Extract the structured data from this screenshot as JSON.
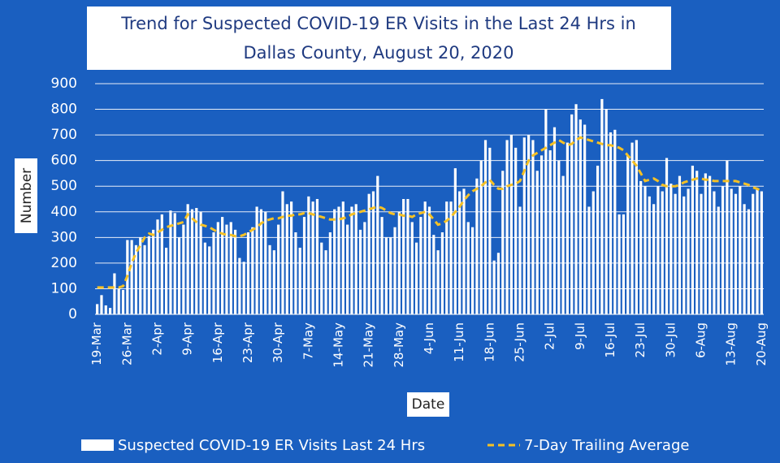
{
  "chart_data": {
    "type": "bar-line",
    "title": [
      "Trend for Suspected COVID-19 ER Visits in the Last 24 Hrs in",
      "Dallas County, August 20, 2020"
    ],
    "x_label": "Date",
    "y_label": "Number",
    "categories": [
      "19-Mar",
      null,
      null,
      null,
      null,
      null,
      null,
      "26-Mar",
      null,
      null,
      null,
      null,
      null,
      null,
      "2-Apr",
      null,
      null,
      null,
      null,
      null,
      null,
      "9-Apr",
      null,
      null,
      null,
      null,
      null,
      null,
      "16-Apr",
      null,
      null,
      null,
      null,
      null,
      null,
      "23-Apr",
      null,
      null,
      null,
      null,
      null,
      null,
      "30-Apr",
      null,
      null,
      null,
      null,
      null,
      null,
      "7-May",
      null,
      null,
      null,
      null,
      null,
      null,
      "14-May",
      null,
      null,
      null,
      null,
      null,
      null,
      "21-May",
      null,
      null,
      null,
      null,
      null,
      null,
      "28-May",
      null,
      null,
      null,
      null,
      null,
      null,
      "4-Jun",
      null,
      null,
      null,
      null,
      null,
      null,
      "11-Jun",
      null,
      null,
      null,
      null,
      null,
      null,
      "18-Jun",
      null,
      null,
      null,
      null,
      null,
      null,
      "25-Jun",
      null,
      null,
      null,
      null,
      null,
      null,
      "2-Jul",
      null,
      null,
      null,
      null,
      null,
      null,
      "9-Jul",
      null,
      null,
      null,
      null,
      null,
      null,
      "16-Jul",
      null,
      null,
      null,
      null,
      null,
      null,
      "23-Jul",
      null,
      null,
      null,
      null,
      null,
      null,
      "30-Jul",
      null,
      null,
      null,
      null,
      null,
      null,
      "6-Aug",
      null,
      null,
      null,
      null,
      null,
      null,
      "13-Aug",
      null,
      null,
      null,
      null,
      null,
      null,
      "20-Aug"
    ],
    "series": [
      {
        "name": "Suspected COVID-19 ER Visits Last 24 Hrs",
        "type": "bar",
        "color": "#ffffff",
        "values": [
          40,
          75,
          35,
          25,
          160,
          100,
          95,
          290,
          290,
          270,
          300,
          270,
          305,
          330,
          370,
          390,
          260,
          405,
          395,
          300,
          350,
          430,
          410,
          415,
          400,
          280,
          265,
          320,
          360,
          380,
          350,
          360,
          330,
          220,
          205,
          320,
          340,
          420,
          410,
          400,
          270,
          250,
          350,
          480,
          430,
          440,
          320,
          260,
          380,
          460,
          440,
          450,
          280,
          250,
          320,
          410,
          420,
          440,
          350,
          420,
          430,
          330,
          360,
          470,
          480,
          540,
          380,
          300,
          300,
          340,
          400,
          450,
          450,
          360,
          280,
          380,
          440,
          420,
          310,
          250,
          320,
          440,
          440,
          570,
          480,
          490,
          360,
          340,
          530,
          600,
          680,
          650,
          210,
          240,
          560,
          680,
          700,
          650,
          420,
          690,
          700,
          680,
          560,
          620,
          800,
          640,
          730,
          600,
          540,
          670,
          780,
          820,
          760,
          740,
          420,
          480,
          580,
          840,
          800,
          710,
          720,
          390,
          390,
          620,
          670,
          680,
          520,
          500,
          460,
          430,
          500,
          480,
          610,
          510,
          470,
          540,
          460,
          490,
          580,
          560,
          470,
          550,
          540,
          480,
          420,
          500,
          600,
          490,
          470,
          500,
          430,
          410,
          470,
          490,
          480
        ]
      },
      {
        "name": "7-Day Trailing Average",
        "type": "line",
        "color": "#f5c125",
        "values": [
          105,
          105,
          105,
          105,
          105,
          105,
          110,
          150,
          200,
          240,
          270,
          300,
          315,
          310,
          320,
          330,
          340,
          345,
          350,
          355,
          360,
          390,
          375,
          360,
          350,
          345,
          340,
          330,
          320,
          315,
          310,
          310,
          305,
          305,
          310,
          320,
          330,
          340,
          355,
          365,
          370,
          375,
          375,
          380,
          385,
          385,
          390,
          390,
          395,
          395,
          390,
          385,
          380,
          375,
          370,
          370,
          370,
          375,
          380,
          390,
          395,
          400,
          405,
          410,
          415,
          420,
          415,
          405,
          395,
          390,
          390,
          385,
          385,
          380,
          390,
          395,
          400,
          390,
          370,
          350,
          355,
          365,
          380,
          400,
          420,
          445,
          465,
          480,
          490,
          500,
          515,
          525,
          505,
          490,
          490,
          500,
          505,
          510,
          520,
          560,
          600,
          620,
          630,
          640,
          650,
          660,
          670,
          680,
          670,
          660,
          665,
          680,
          690,
          685,
          680,
          675,
          670,
          665,
          660,
          660,
          655,
          650,
          640,
          620,
          600,
          580,
          550,
          520,
          525,
          530,
          520,
          505,
          500,
          500,
          500,
          505,
          515,
          520,
          525,
          530,
          530,
          525,
          525,
          520,
          520,
          520,
          520,
          520,
          520,
          515,
          510,
          505,
          495,
          490,
          480
        ]
      }
    ],
    "ylim": [
      0,
      900
    ],
    "yticks": [
      0,
      100,
      200,
      300,
      400,
      500,
      600,
      700,
      800,
      900
    ],
    "grid": true,
    "legend": "bottom"
  }
}
